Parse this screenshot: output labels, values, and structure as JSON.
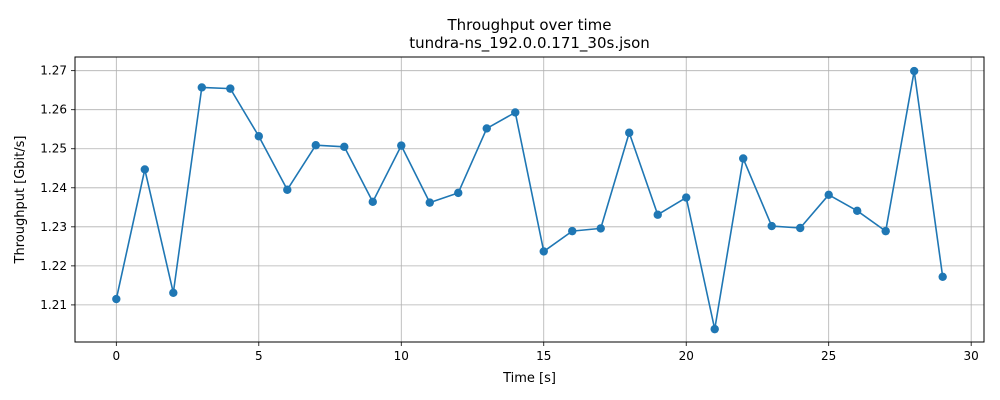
{
  "chart_data": {
    "type": "line",
    "title": "Throughput over time",
    "subtitle": "tundra-ns_192.0.0.171_30s.json",
    "xlabel": "Time [s]",
    "ylabel": "Throughput [Gbit/s]",
    "xlim": [
      -1.45,
      30.45
    ],
    "ylim": [
      1.2005,
      1.2735
    ],
    "xticks": [
      0,
      5,
      10,
      15,
      20,
      25,
      30
    ],
    "xtick_labels": [
      "0",
      "5",
      "10",
      "15",
      "20",
      "25",
      "30"
    ],
    "yticks": [
      1.21,
      1.22,
      1.23,
      1.24,
      1.25,
      1.26,
      1.27
    ],
    "ytick_labels": [
      "1.21",
      "1.22",
      "1.23",
      "1.24",
      "1.25",
      "1.26",
      "1.27"
    ],
    "grid": true,
    "color": "#1f77b4",
    "marker": "circle",
    "x": [
      0,
      1,
      2,
      3,
      4,
      5,
      6,
      7,
      8,
      9,
      10,
      11,
      12,
      13,
      14,
      15,
      16,
      17,
      18,
      19,
      20,
      21,
      22,
      23,
      24,
      25,
      26,
      27,
      28,
      29
    ],
    "y": [
      1.2115,
      1.2447,
      1.2131,
      1.2657,
      1.2654,
      1.2532,
      1.2395,
      1.2509,
      1.2505,
      1.2364,
      1.2508,
      1.2362,
      1.2387,
      1.2552,
      1.2593,
      1.2237,
      1.2289,
      1.2296,
      1.2541,
      1.2331,
      1.2375,
      1.2038,
      1.2475,
      1.2302,
      1.2297,
      1.2382,
      1.2341,
      1.2289,
      1.2699,
      1.2172
    ]
  }
}
